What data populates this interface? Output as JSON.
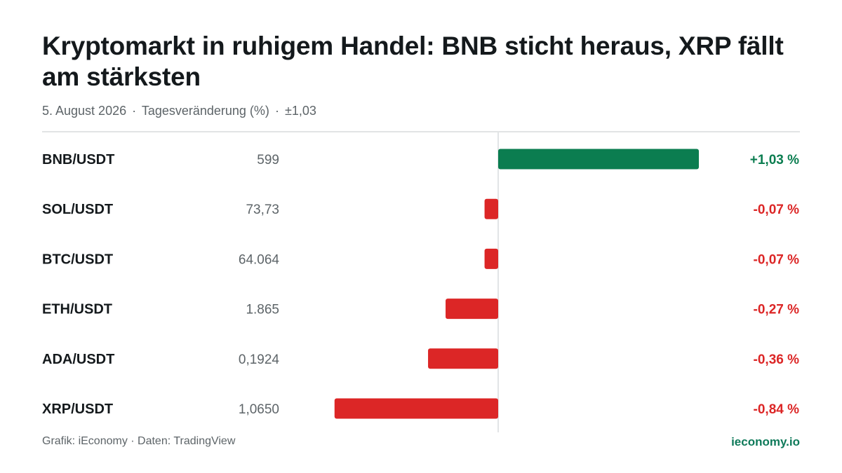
{
  "title": "Kryptomarkt in ruhigem Handel: BNB sticht heraus, XRP fällt am stärksten",
  "subtitle": {
    "date": "5. August 2026",
    "measure": "Tagesveränderung (%)",
    "scale": "±1,03",
    "separator": "·"
  },
  "colors": {
    "positive": "#0b7d50",
    "negative": "#dc2626",
    "positive_text": "#0b7d50",
    "negative_text": "#dc2626",
    "axis": "#d9dcde"
  },
  "chart_data": {
    "type": "bar",
    "orientation": "horizontal",
    "categories": [
      "BNB/USDT",
      "SOL/USDT",
      "BTC/USDT",
      "ETH/USDT",
      "ADA/USDT",
      "XRP/USDT"
    ],
    "prices": [
      "599",
      "73,73",
      "64.064",
      "1.865",
      "0,1924",
      "1,0650"
    ],
    "values": [
      1.03,
      -0.07,
      -0.07,
      -0.27,
      -0.36,
      -0.84
    ],
    "value_labels": [
      "+1,03 %",
      "-0,07 %",
      "-0,07 %",
      "-0,27 %",
      "-0,36 %",
      "-0,84 %"
    ],
    "xlim": [
      -1.03,
      1.03
    ],
    "grid": false,
    "baseline": 0
  },
  "footer": {
    "credit": "Grafik: iEconomy · Daten: TradingView",
    "brand": "ieconomy.io"
  }
}
